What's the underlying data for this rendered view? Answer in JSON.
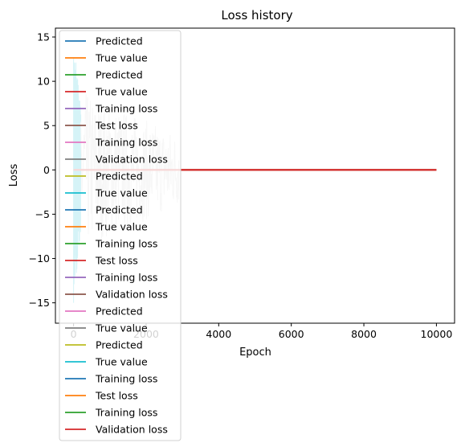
{
  "chart_data": {
    "type": "line",
    "title": "Loss history",
    "xlabel": "Epoch",
    "ylabel": "Loss",
    "xlim": [
      -500,
      10500
    ],
    "ylim": [
      -17.3,
      16.0
    ],
    "x_ticks": [
      0,
      2000,
      4000,
      6000,
      8000,
      10000
    ],
    "y_ticks": [
      -15,
      -10,
      -5,
      0,
      5,
      10,
      15
    ],
    "grid": false,
    "legend_position": "upper-left",
    "legend": [
      {
        "label": "Predicted",
        "color": "#1f77b4"
      },
      {
        "label": "True value",
        "color": "#ff7f0e"
      },
      {
        "label": "Predicted",
        "color": "#2ca02c"
      },
      {
        "label": "True value",
        "color": "#d62728"
      },
      {
        "label": "Training loss",
        "color": "#9467bd"
      },
      {
        "label": "Test loss",
        "color": "#8c564b"
      },
      {
        "label": "Training loss",
        "color": "#e377c2"
      },
      {
        "label": "Validation loss",
        "color": "#7f7f7f"
      },
      {
        "label": "Predicted",
        "color": "#bcbd22"
      },
      {
        "label": "True value",
        "color": "#17becf"
      },
      {
        "label": "Predicted",
        "color": "#1f77b4"
      },
      {
        "label": "True value",
        "color": "#ff7f0e"
      },
      {
        "label": "Training loss",
        "color": "#2ca02c"
      },
      {
        "label": "Test loss",
        "color": "#d62728"
      },
      {
        "label": "Training loss",
        "color": "#9467bd"
      },
      {
        "label": "Validation loss",
        "color": "#8c564b"
      },
      {
        "label": "Predicted",
        "color": "#e377c2"
      },
      {
        "label": "True value",
        "color": "#7f7f7f"
      },
      {
        "label": "Predicted",
        "color": "#bcbd22"
      },
      {
        "label": "True value",
        "color": "#17becf"
      },
      {
        "label": "Training loss",
        "color": "#1f77b4"
      },
      {
        "label": "Test loss",
        "color": "#ff7f0e"
      },
      {
        "label": "Training loss",
        "color": "#2ca02c"
      },
      {
        "label": "Validation loss",
        "color": "#d62728"
      }
    ],
    "series": [
      {
        "color": "#17becf",
        "x_range": [
          0,
          200
        ],
        "y_amplitude": 15,
        "kind": "noisy"
      },
      {
        "color": "#d0d0d0",
        "x_range": [
          200,
          2900
        ],
        "y_amplitude": 9,
        "kind": "noisy"
      },
      {
        "color": "#a0522d",
        "x": [
          0,
          10000
        ],
        "values": [
          0,
          0
        ]
      },
      {
        "color": "#d62728",
        "x": [
          0,
          10000
        ],
        "values": [
          0,
          0
        ]
      }
    ]
  }
}
